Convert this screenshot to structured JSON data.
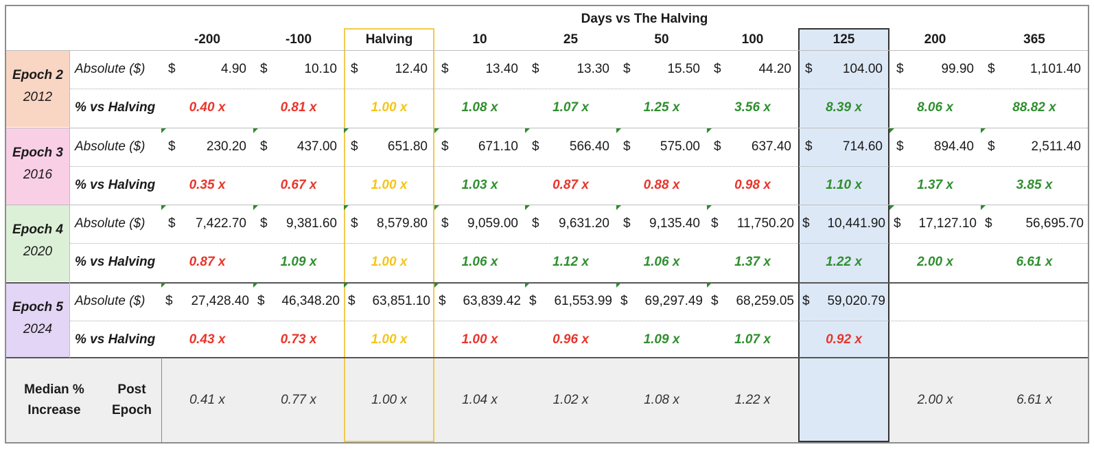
{
  "header": {
    "title": "Days vs The Halving",
    "columns": [
      "-200",
      "-100",
      "Halving",
      "10",
      "25",
      "50",
      "100",
      "125",
      "200",
      "365"
    ]
  },
  "row_labels": {
    "absolute": "Absolute ($)",
    "pct": "% vs Halving"
  },
  "epochs": [
    {
      "name": "Epoch 2",
      "year": "2012",
      "absolute": [
        "4.90",
        "10.10",
        "12.40",
        "13.40",
        "13.30",
        "15.50",
        "44.20",
        "104.00",
        "99.90",
        "1,101.40"
      ],
      "pct": [
        "0.40 x",
        "0.81 x",
        "1.00 x",
        "1.08 x",
        "1.07 x",
        "1.25 x",
        "3.56 x",
        "8.39 x",
        "8.06 x",
        "88.82 x"
      ],
      "pct_color": [
        "red",
        "red",
        "yellow",
        "green",
        "green",
        "green",
        "green",
        "green",
        "green",
        "green"
      ]
    },
    {
      "name": "Epoch 3",
      "year": "2016",
      "absolute": [
        "230.20",
        "437.00",
        "651.80",
        "671.10",
        "566.40",
        "575.00",
        "637.40",
        "714.60",
        "894.40",
        "2,511.40"
      ],
      "pct": [
        "0.35 x",
        "0.67 x",
        "1.00 x",
        "1.03 x",
        "0.87 x",
        "0.88 x",
        "0.98 x",
        "1.10 x",
        "1.37 x",
        "3.85 x"
      ],
      "pct_color": [
        "red",
        "red",
        "yellow",
        "green",
        "red",
        "red",
        "red",
        "green",
        "green",
        "green"
      ]
    },
    {
      "name": "Epoch 4",
      "year": "2020",
      "absolute": [
        "7,422.70",
        "9,381.60",
        "8,579.80",
        "9,059.00",
        "9,631.20",
        "9,135.40",
        "11,750.20",
        "10,441.90",
        "17,127.10",
        "56,695.70"
      ],
      "pct": [
        "0.87 x",
        "1.09 x",
        "1.00 x",
        "1.06 x",
        "1.12 x",
        "1.06 x",
        "1.37 x",
        "1.22 x",
        "2.00 x",
        "6.61 x"
      ],
      "pct_color": [
        "red",
        "green",
        "yellow",
        "green",
        "green",
        "green",
        "green",
        "green",
        "green",
        "green"
      ]
    },
    {
      "name": "Epoch 5",
      "year": "2024",
      "absolute": [
        "27,428.40",
        "46,348.20",
        "63,851.10",
        "63,839.42",
        "61,553.99",
        "69,297.49",
        "68,259.05",
        "59,020.79",
        "",
        ""
      ],
      "pct": [
        "0.43 x",
        "0.73 x",
        "1.00 x",
        "1.00 x",
        "0.96 x",
        "1.09 x",
        "1.07 x",
        "0.92 x",
        "",
        ""
      ],
      "pct_color": [
        "red",
        "red",
        "yellow",
        "red",
        "red",
        "green",
        "green",
        "red",
        "",
        ""
      ]
    }
  ],
  "median": {
    "label_line1": "Median % Increase",
    "label_line2": "Post Epoch",
    "values": [
      "0.41 x",
      "0.77 x",
      "1.00 x",
      "1.04 x",
      "1.02 x",
      "1.08 x",
      "1.22 x",
      "",
      "2.00 x",
      "6.61 x"
    ]
  },
  "colors": {
    "epoch_bg": [
      "#f9d5c3",
      "#f9cfe6",
      "#dcf0d8",
      "#e3d5f5"
    ],
    "highlight_col": "#dde8f6",
    "halving_border": "#f2c94c",
    "median_bg": "#efefef",
    "pct_red": "#e8352b",
    "pct_green": "#2f8f2f",
    "pct_yellow": "#f5c518"
  }
}
